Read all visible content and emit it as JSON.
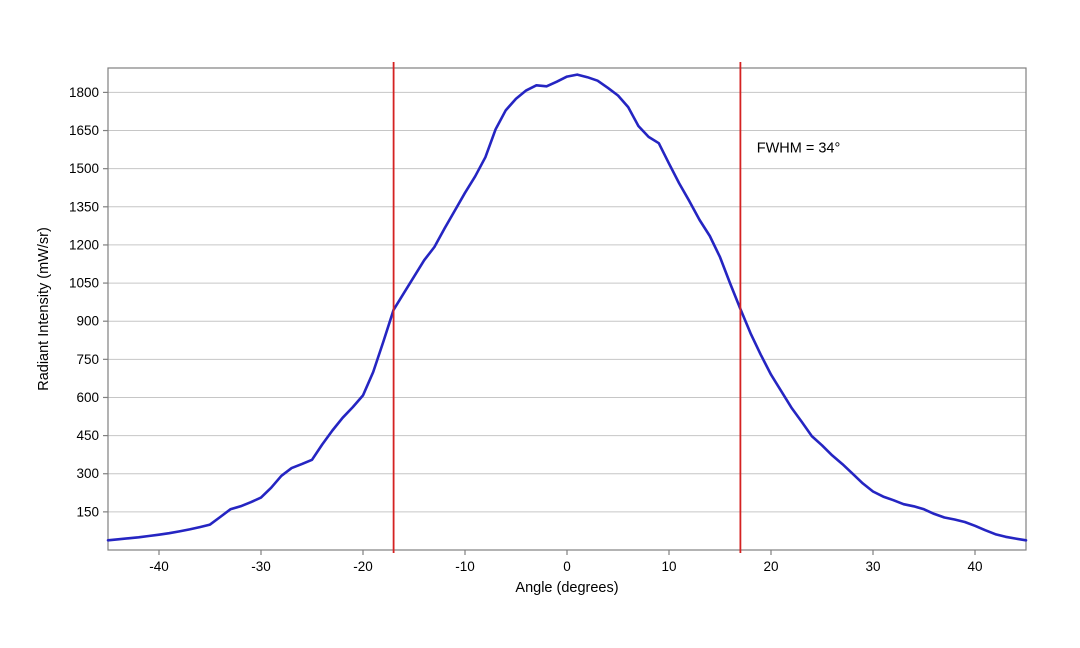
{
  "chart_data": {
    "type": "line",
    "title": "",
    "xlabel": "Angle (degrees)",
    "ylabel": "Radiant Intensity (mW/sr)",
    "xlim": [
      -45,
      45
    ],
    "ylim": [
      0,
      1896
    ],
    "xticks": [
      -40,
      -30,
      -20,
      -10,
      0,
      10,
      20,
      30,
      40
    ],
    "yticks": [
      150,
      300,
      450,
      600,
      750,
      900,
      1050,
      1200,
      1350,
      1500,
      1650,
      1800
    ],
    "grid": "horizontal-only",
    "legend": "none",
    "series": [
      {
        "name": "radiant-intensity",
        "color": "#2525c2",
        "x": [
          -45,
          -44,
          -43,
          -42,
          -41,
          -40,
          -39,
          -38,
          -37,
          -36,
          -35,
          -34,
          -33,
          -32,
          -31,
          -30,
          -29,
          -28,
          -27,
          -26,
          -25,
          -24,
          -23,
          -22,
          -21,
          -20,
          -19,
          -18,
          -17,
          -16,
          -15,
          -14,
          -13,
          -12,
          -11,
          -10,
          -9,
          -8,
          -7,
          -6,
          -5,
          -4,
          -3,
          -2,
          -1,
          0,
          1,
          2,
          3,
          4,
          5,
          6,
          7,
          8,
          9,
          10,
          11,
          12,
          13,
          14,
          15,
          16,
          17,
          18,
          19,
          20,
          21,
          22,
          23,
          24,
          25,
          26,
          27,
          28,
          29,
          30,
          31,
          32,
          33,
          34,
          35,
          36,
          37,
          38,
          39,
          40,
          41,
          42,
          43,
          44,
          45
        ],
        "values": [
          38,
          42,
          46,
          50,
          55,
          60,
          66,
          73,
          81,
          90,
          100,
          130,
          160,
          172,
          188,
          206,
          245,
          292,
          322,
          338,
          355,
          415,
          470,
          520,
          562,
          608,
          700,
          820,
          945,
          1010,
          1075,
          1140,
          1192,
          1265,
          1335,
          1405,
          1470,
          1545,
          1655,
          1730,
          1775,
          1808,
          1828,
          1824,
          1842,
          1862,
          1870,
          1860,
          1846,
          1818,
          1788,
          1742,
          1668,
          1625,
          1600,
          1520,
          1442,
          1372,
          1298,
          1235,
          1152,
          1048,
          948,
          852,
          768,
          690,
          625,
          560,
          505,
          448,
          412,
          372,
          338,
          300,
          262,
          230,
          210,
          196,
          180,
          172,
          160,
          142,
          128,
          120,
          110,
          95,
          78,
          62,
          52,
          45,
          38
        ]
      }
    ],
    "vlines": {
      "x": [
        -17,
        17
      ],
      "color": "#d42222",
      "meaning": "half-maximum markers"
    },
    "annotations": [
      {
        "text": "FWHM = 34°",
        "x": 18.6,
        "y": 1580
      }
    ]
  },
  "styles": {
    "axis_color": "#808080",
    "grid_color": "#c6c6c6",
    "text_color": "#000000",
    "background": "#ffffff"
  }
}
